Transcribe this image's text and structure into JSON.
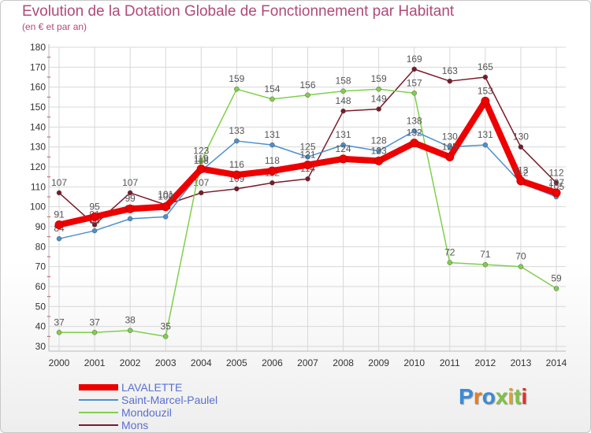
{
  "title": "Evolution de la Dotation Globale de Fonctionnement par Habitant",
  "subtitle": "(en € et par an)",
  "logo_text": "Proxiti",
  "logo_colors": [
    "#3b8bd6",
    "#e67e22",
    "#3b8bd6",
    "#7fc342",
    "#e0a020",
    "#7fc342",
    "#e03030"
  ],
  "chart_data": {
    "type": "line",
    "title": "Evolution de la Dotation Globale de Fonctionnement par Habitant",
    "subtitle": "(en € et par an)",
    "xlabel": "",
    "ylabel": "",
    "ylim": [
      30,
      180
    ],
    "yticks": [
      30,
      40,
      50,
      60,
      70,
      80,
      90,
      100,
      110,
      120,
      130,
      140,
      150,
      160,
      170,
      180
    ],
    "categories": [
      "2000",
      "2001",
      "2002",
      "2003",
      "2004",
      "2005",
      "2006",
      "2007",
      "2008",
      "2009",
      "2010",
      "2011",
      "2012",
      "2013",
      "2014"
    ],
    "legend_position": "bottom-left",
    "series": [
      {
        "name": "Mons",
        "color": "#7a1a2a",
        "values": [
          107,
          91,
          107,
          101,
          107,
          109,
          112,
          114,
          148,
          149,
          169,
          163,
          165,
          130,
          112
        ]
      },
      {
        "name": "Mondouzil",
        "color": "#7fd04a",
        "values": [
          37,
          37,
          38,
          35,
          123,
          159,
          154,
          156,
          158,
          159,
          157,
          72,
          71,
          70,
          59
        ]
      },
      {
        "name": "Saint-Marcel-Paulel",
        "color": "#4a90d0",
        "values": [
          84,
          88,
          94,
          95,
          118,
          133,
          131,
          125,
          131,
          128,
          138,
          130,
          131,
          112,
          105
        ]
      },
      {
        "name": "LAVALETTE",
        "color": "#ee0000",
        "values": [
          91,
          95,
          99,
          100,
          119,
          116,
          118,
          121,
          124,
          123,
          132,
          125,
          153,
          113,
          107
        ]
      }
    ]
  },
  "legend": [
    {
      "name": "LAVALETTE",
      "color": "#ee0000"
    },
    {
      "name": "Saint-Marcel-Paulel",
      "color": "#4a90d0"
    },
    {
      "name": "Mondouzil",
      "color": "#7fd04a"
    },
    {
      "name": "Mons",
      "color": "#7a1a2a"
    }
  ]
}
